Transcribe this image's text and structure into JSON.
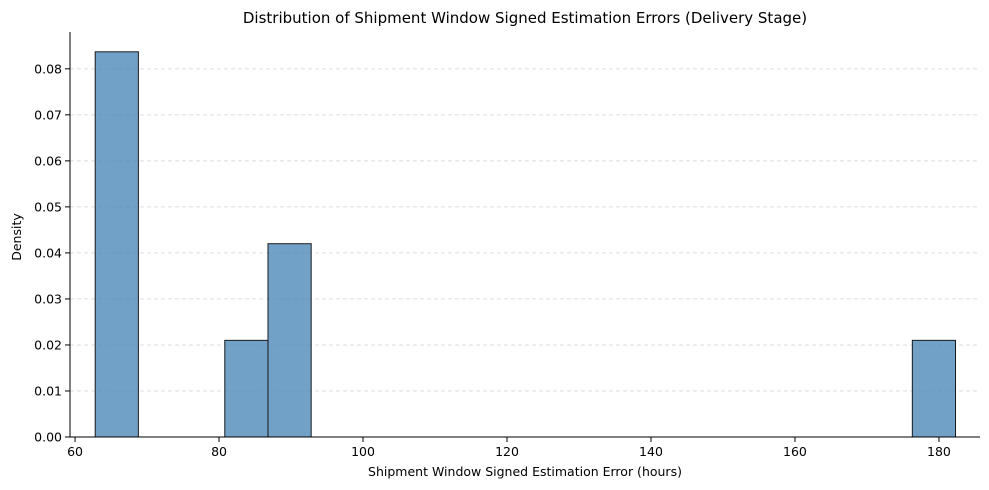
{
  "chart_data": {
    "type": "bar",
    "title": "Distribution of Shipment Window Signed Estimation Errors (Delivery Stage)",
    "xlabel": "Shipment Window Signed Estimation Error (hours)",
    "ylabel": "Density",
    "xlim": [
      59.3,
      185.7
    ],
    "ylim": [
      0,
      0.088
    ],
    "x_ticks": [
      60,
      80,
      100,
      120,
      140,
      160,
      180
    ],
    "x_tick_labels": [
      "60",
      "80",
      "100",
      "120",
      "140",
      "160",
      "180"
    ],
    "y_ticks": [
      0,
      0.01,
      0.02,
      0.03,
      0.04,
      0.05,
      0.06,
      0.07,
      0.08
    ],
    "y_tick_labels": [
      "0.00",
      "0.01",
      "0.02",
      "0.03",
      "0.04",
      "0.05",
      "0.06",
      "0.07",
      "0.08"
    ],
    "bins": [
      {
        "x0": 62.8,
        "x1": 68.8,
        "value": 0.0837
      },
      {
        "x0": 80.8,
        "x1": 86.8,
        "value": 0.021
      },
      {
        "x0": 86.8,
        "x1": 92.8,
        "value": 0.042
      },
      {
        "x0": 176.3,
        "x1": 182.3,
        "value": 0.021
      }
    ],
    "grid": {
      "y": true,
      "x": false,
      "style": "dashed"
    },
    "colors": {
      "bar_fill": "#4a86b8",
      "bar_edge": "#1a1a1a",
      "grid": "#dddddd",
      "axis": "#000000"
    }
  }
}
